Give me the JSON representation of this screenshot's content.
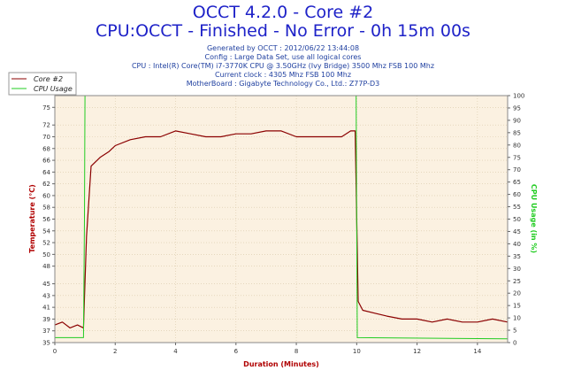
{
  "header": {
    "title": "OCCT 4.2.0 - Core #2",
    "subtitle": "CPU:OCCT - Finished - No Error - 0h 15m 00s",
    "info_lines": [
      "Generated by OCCT : 2012/06/22 13:44:08",
      "Config : Large Data Set, use all logical cores",
      "CPU : Intel(R) Core(TM) i7-3770K CPU @ 3.50GHz (Ivy Bridge) 3500 Mhz FSB 100 Mhz",
      "Current clock : 4305 Mhz FSB 100 Mhz",
      "MotherBoard : Gigabyte Technology Co., Ltd.: Z77P-D3"
    ]
  },
  "colors": {
    "core": "#8b0000",
    "cpu_usage": "#22cc22",
    "plot_bg": "#fbf1e1",
    "grid": "#d8c8a8",
    "title": "#1e22c8",
    "left_axis_label": "#b00000",
    "right_axis_label": "#22cc22"
  },
  "chart_data": {
    "type": "line",
    "xlabel": "Duration (Minutes)",
    "ylabel": "Temperature (°C)",
    "y2label": "CPU Usage (in %)",
    "xlim": [
      0,
      15
    ],
    "ylim": [
      35,
      77
    ],
    "y2lim": [
      0,
      100
    ],
    "x_ticks": [
      0,
      2,
      4,
      6,
      8,
      10,
      12,
      14
    ],
    "y_ticks": [
      35,
      37,
      39,
      41,
      43,
      45,
      48,
      50,
      52,
      54,
      56,
      58,
      60,
      62,
      64,
      66,
      68,
      70,
      72,
      75
    ],
    "y2_ticks": [
      0,
      5,
      10,
      15,
      20,
      25,
      30,
      35,
      40,
      45,
      50,
      55,
      60,
      65,
      70,
      75,
      80,
      85,
      90,
      95,
      100
    ],
    "grid": true,
    "legend": "top-left",
    "series": [
      {
        "name": "Core #2",
        "axis": "left",
        "x": [
          0,
          0.25,
          0.5,
          0.75,
          0.95,
          1.05,
          1.2,
          1.5,
          1.8,
          2.0,
          2.5,
          3.0,
          3.5,
          4.0,
          4.5,
          5.0,
          5.5,
          6.0,
          6.5,
          7.0,
          7.5,
          8.0,
          8.5,
          9.0,
          9.5,
          9.8,
          9.95,
          10.05,
          10.2,
          10.6,
          11.0,
          11.5,
          12.0,
          12.5,
          13.0,
          13.5,
          14.0,
          14.5,
          15.0
        ],
        "y": [
          38,
          38.5,
          37.5,
          38,
          37.5,
          53,
          65,
          66.5,
          67.5,
          68.5,
          69.5,
          70,
          70,
          71,
          70.5,
          70,
          70,
          70.5,
          70.5,
          71,
          71,
          70,
          70,
          70,
          70,
          71,
          71,
          42,
          40.5,
          40,
          39.5,
          39,
          39,
          38.5,
          39,
          38.5,
          38.5,
          39,
          38.5
        ]
      },
      {
        "name": "CPU Usage",
        "axis": "right",
        "x": [
          0,
          0.95,
          0.98,
          1.0,
          9.98,
          10.0,
          10.02,
          15.0
        ],
        "y": [
          2,
          2,
          50,
          100,
          100,
          50,
          2,
          1.5
        ]
      }
    ]
  }
}
